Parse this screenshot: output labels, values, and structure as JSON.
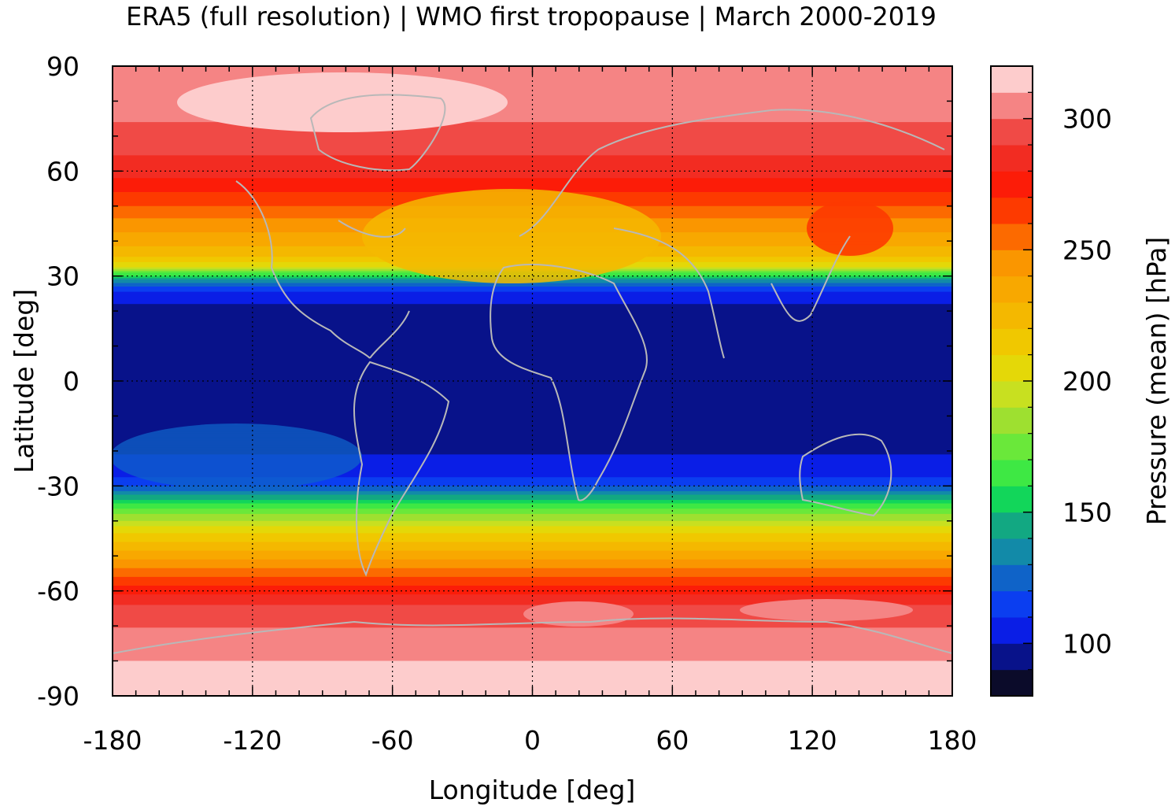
{
  "chart_data": {
    "type": "heatmap",
    "title": "ERA5 (full resolution) | WMO first tropopause | March 2000-2019",
    "xlabel": "Longitude [deg]",
    "ylabel": "Latitude [deg]",
    "colorbar_label": "Pressure (mean) [hPa]",
    "xlim": [
      -180,
      180
    ],
    "ylim": [
      -90,
      90
    ],
    "x_ticks": [
      "-180",
      "-120",
      "-60",
      "0",
      "60",
      "120",
      "180"
    ],
    "y_ticks": [
      "90",
      "60",
      "30",
      "0",
      "-30",
      "-60",
      "-90"
    ],
    "colorbar_range": [
      80,
      320
    ],
    "colorbar_ticks": [
      "300",
      "250",
      "200",
      "150",
      "100"
    ],
    "colorbar_levels": [
      {
        "from": 80,
        "to": 90,
        "color": "#0b0b2a"
      },
      {
        "from": 90,
        "to": 100,
        "color": "#08128a"
      },
      {
        "from": 100,
        "to": 110,
        "color": "#0a1ee6"
      },
      {
        "from": 110,
        "to": 120,
        "color": "#0b3ef0"
      },
      {
        "from": 120,
        "to": 130,
        "color": "#0f63c8"
      },
      {
        "from": 130,
        "to": 140,
        "color": "#128aa8"
      },
      {
        "from": 140,
        "to": 150,
        "color": "#12a882"
      },
      {
        "from": 150,
        "to": 160,
        "color": "#12d65a"
      },
      {
        "from": 160,
        "to": 170,
        "color": "#3ee844"
      },
      {
        "from": 170,
        "to": 180,
        "color": "#6ae83a"
      },
      {
        "from": 180,
        "to": 190,
        "color": "#9ee030"
      },
      {
        "from": 190,
        "to": 200,
        "color": "#c8e020"
      },
      {
        "from": 200,
        "to": 210,
        "color": "#e4d808"
      },
      {
        "from": 210,
        "to": 220,
        "color": "#f0c800"
      },
      {
        "from": 220,
        "to": 230,
        "color": "#f4b800"
      },
      {
        "from": 230,
        "to": 240,
        "color": "#f8a800"
      },
      {
        "from": 240,
        "to": 250,
        "color": "#fa9600"
      },
      {
        "from": 250,
        "to": 260,
        "color": "#fc6a00"
      },
      {
        "from": 260,
        "to": 270,
        "color": "#fd3a00"
      },
      {
        "from": 270,
        "to": 280,
        "color": "#fc1c08"
      },
      {
        "from": 280,
        "to": 290,
        "color": "#f22c22"
      },
      {
        "from": 290,
        "to": 300,
        "color": "#f04a46"
      },
      {
        "from": 300,
        "to": 310,
        "color": "#f58484"
      },
      {
        "from": 310,
        "to": 320,
        "color": "#fdcccc"
      }
    ],
    "zonal_profile": [
      {
        "lat": 90,
        "p": 305
      },
      {
        "lat": 80,
        "p": 303
      },
      {
        "lat": 70,
        "p": 298
      },
      {
        "lat": 60,
        "p": 284
      },
      {
        "lat": 52,
        "p": 266
      },
      {
        "lat": 45,
        "p": 246
      },
      {
        "lat": 40,
        "p": 234
      },
      {
        "lat": 36,
        "p": 222
      },
      {
        "lat": 33,
        "p": 205
      },
      {
        "lat": 31,
        "p": 172
      },
      {
        "lat": 29,
        "p": 140
      },
      {
        "lat": 27,
        "p": 118
      },
      {
        "lat": 24,
        "p": 103
      },
      {
        "lat": 20,
        "p": 97
      },
      {
        "lat": 0,
        "p": 94
      },
      {
        "lat": -15,
        "p": 95
      },
      {
        "lat": -22,
        "p": 101
      },
      {
        "lat": -27,
        "p": 108
      },
      {
        "lat": -31,
        "p": 125
      },
      {
        "lat": -34,
        "p": 152
      },
      {
        "lat": -38,
        "p": 180
      },
      {
        "lat": -43,
        "p": 208
      },
      {
        "lat": -48,
        "p": 228
      },
      {
        "lat": -53,
        "p": 248
      },
      {
        "lat": -58,
        "p": 268
      },
      {
        "lat": -62,
        "p": 285
      },
      {
        "lat": -66,
        "p": 294
      },
      {
        "lat": -72,
        "p": 302
      },
      {
        "lat": -80,
        "p": 310
      },
      {
        "lat": -90,
        "p": 314
      }
    ],
    "grid": true,
    "grid_style": "dotted",
    "coastlines": true,
    "coastline_color": "#b8b8b8"
  }
}
